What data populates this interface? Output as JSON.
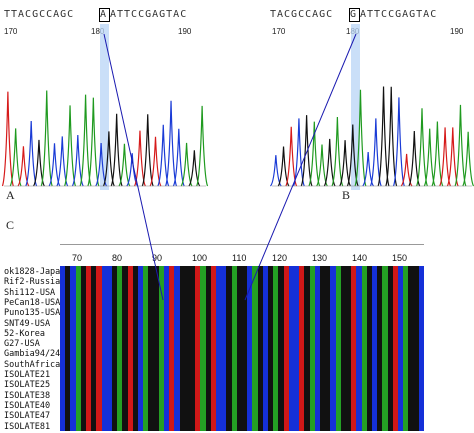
{
  "panel_a": {
    "sequence": "TTACGCCAGC A ATTCCGAGTAC",
    "seq_left": "TTACGCCAGC",
    "seq_right": "ATTCCGAGTAC",
    "highlight_base": "A",
    "ticks": [
      "170",
      "180",
      "190"
    ],
    "label": "A"
  },
  "panel_b": {
    "seq_left": "TACGCCAGC",
    "seq_right": "ATTCCGAGTAC",
    "highlight_base": "G",
    "ticks": [
      "170",
      "180",
      "190"
    ],
    "label": "B"
  },
  "panel_c": {
    "label": "C",
    "ruler": [
      "70",
      "80",
      "90",
      "100",
      "110",
      "120",
      "130",
      "140",
      "150"
    ],
    "rows": [
      "ok1828-Japan",
      "Rif2-Russia",
      "Shi112-USA",
      "PeCan18-USA",
      "Puno135-USA",
      "SNT49-USA",
      "52-Korea",
      "G27-USA",
      "Gambia94/24",
      "SouthAfrica7",
      "ISOLATE21",
      "ISOLATE25",
      "ISOLATE38",
      "ISOLATE40",
      "ISOLATE47",
      "ISOLATE81"
    ]
  },
  "colors": {
    "A": "#1f9a1f",
    "C": "#1a3bd6",
    "G": "#111111",
    "T": "#d61a1a",
    "col_A": "#24a024",
    "col_G": "#111111",
    "col_C": "#1530d8",
    "col_T": "#d01818",
    "highlight": "#b8d4f5",
    "connector": "#1a1ab0"
  }
}
